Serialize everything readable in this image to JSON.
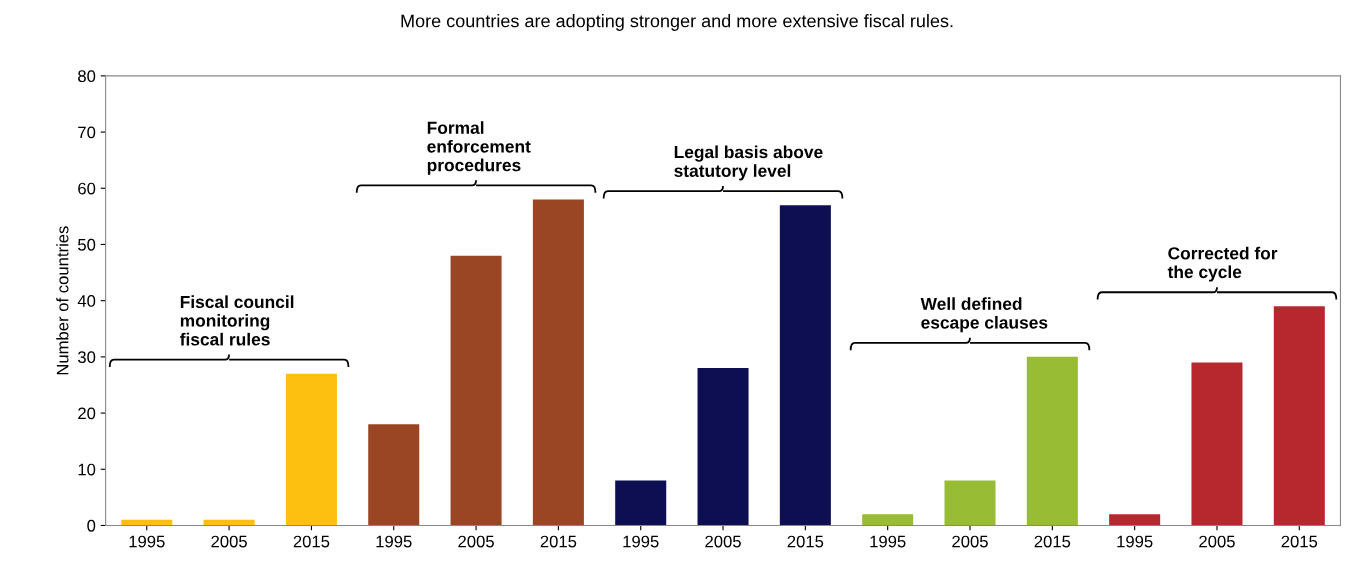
{
  "chart_data": {
    "type": "bar",
    "title": "More countries are adopting stronger and more extensive fiscal rules.",
    "ylabel": "Number of countries",
    "categories": [
      "1995",
      "2005",
      "2015",
      "1995",
      "2005",
      "2015",
      "1995",
      "2005",
      "2015",
      "1995",
      "2005",
      "2015",
      "1995",
      "2005",
      "2015"
    ],
    "values": [
      1,
      1,
      27,
      18,
      48,
      58,
      8,
      28,
      57,
      2,
      8,
      30,
      2,
      29,
      39
    ],
    "colors": [
      "#fdc010",
      "#fdc010",
      "#fdc010",
      "#9a4524",
      "#9a4524",
      "#9a4524",
      "#0d0f52",
      "#0d0f52",
      "#0d0f52",
      "#98bd34",
      "#98bd34",
      "#98bd34",
      "#b7282e",
      "#b7282e",
      "#b7282e"
    ],
    "annotations": [
      "Fiscal council\nmonitoring\nfiscal rules",
      "Formal\nenforcement\nprocedures",
      "Legal basis above\nstatutory level",
      "Well defined\nescape clauses",
      "Corrected for\nthe cycle"
    ],
    "ylim": [
      0,
      80
    ],
    "yticks": [
      0,
      10,
      20,
      30,
      40,
      50,
      60,
      70,
      80
    ],
    "grid": false
  }
}
